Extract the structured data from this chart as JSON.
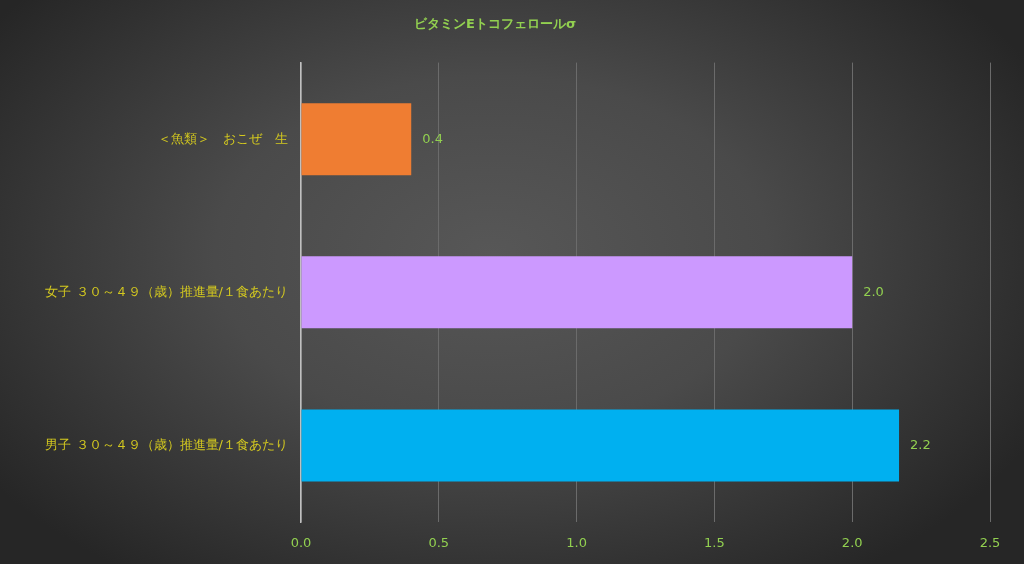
{
  "chart_data": {
    "type": "bar",
    "orientation": "horizontal",
    "title": "ビタミンEトコフェロールσ",
    "categories": [
      "＜魚類＞　おこぜ　生",
      "女子 ３０～４９（歳）推進量/１食あたり",
      "男子 ３０～４９（歳）推進量/１食あたり"
    ],
    "values": [
      0.4,
      2.0,
      2.17
    ],
    "colors": [
      "#ef7d32",
      "#cc99ff",
      "#00b0f0"
    ],
    "value_labels": [
      "0.4",
      "2.0",
      "2.2"
    ],
    "xlim": [
      0,
      2.5
    ],
    "xticks": [
      {
        "value": 0,
        "label": "0.0"
      },
      0.5,
      {
        "value": 1,
        "label": "1.0"
      },
      1.5,
      {
        "value": 2,
        "label": "2.0"
      },
      2.5
    ],
    "grid": "x"
  }
}
